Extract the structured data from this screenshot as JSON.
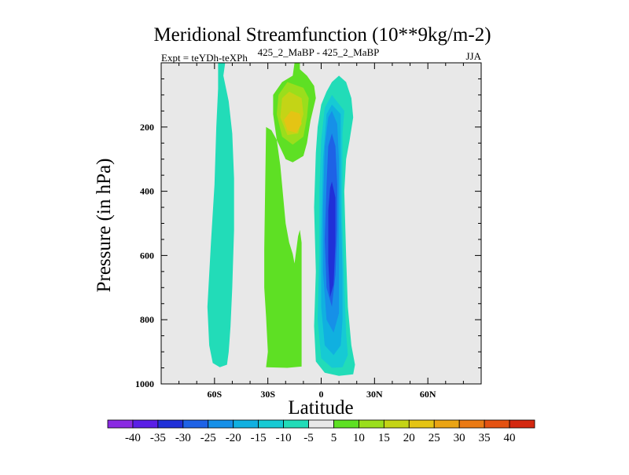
{
  "chart_data": {
    "type": "contour",
    "title": "Meridional Streamfunction (10**9kg/m-2)",
    "subtitle_left": "Expt = teYDh-teXPh",
    "subtitle_center": "425_2_MaBP - 425_2_MaBP",
    "subtitle_right": "JJA",
    "xlabel": "Latitude",
    "ylabel": "Pressure (in hPa)",
    "xlim": [
      -90,
      90
    ],
    "ylim": [
      1000,
      0
    ],
    "y_inverted": true,
    "x_ticks": [
      {
        "value": -60,
        "label": "60S"
      },
      {
        "value": -30,
        "label": "30S"
      },
      {
        "value": 0,
        "label": "0"
      },
      {
        "value": 30,
        "label": "30N"
      },
      {
        "value": 60,
        "label": "60N"
      }
    ],
    "y_ticks": [
      {
        "value": 200,
        "label": "200"
      },
      {
        "value": 400,
        "label": "400"
      },
      {
        "value": 600,
        "label": "600"
      },
      {
        "value": 800,
        "label": "800"
      },
      {
        "value": 1000,
        "label": "1000"
      }
    ],
    "x_minor_step": 10,
    "y_minor_step": 50,
    "background_color": "#e8e8e8",
    "colorbar": {
      "levels": [
        -40,
        -35,
        -30,
        -25,
        -20,
        -15,
        -10,
        -5,
        5,
        10,
        15,
        20,
        25,
        30,
        35,
        40
      ],
      "labels": [
        "-40",
        "-35",
        "-30",
        "-25",
        "-20",
        "-15",
        "-10",
        "-5",
        "5",
        "10",
        "15",
        "20",
        "25",
        "30",
        "35",
        "40"
      ],
      "colors": [
        "#8a2be2",
        "#5a1ee6",
        "#2030d8",
        "#1e62e6",
        "#1690e8",
        "#10b0e0",
        "#16cad4",
        "#22dcb8",
        "#e8e8e8",
        "#5ee024",
        "#9ade1c",
        "#c4d416",
        "#e4c414",
        "#eaa414",
        "#ea7a14",
        "#e45212",
        "#d42810"
      ]
    },
    "regions": [
      {
        "name": "sh-positive-tongue",
        "level": "-10 to -5",
        "color": "#22dcb8",
        "points": [
          [
            -58,
            0
          ],
          [
            -54,
            0
          ],
          [
            -55,
            40
          ],
          [
            -52,
            120
          ],
          [
            -50,
            220
          ],
          [
            -49,
            360
          ],
          [
            -49,
            520
          ],
          [
            -50,
            700
          ],
          [
            -51,
            820
          ],
          [
            -52,
            900
          ],
          [
            -53,
            940
          ],
          [
            -57,
            948
          ],
          [
            -61,
            935
          ],
          [
            -63,
            880
          ],
          [
            -64,
            760
          ],
          [
            -62,
            560
          ],
          [
            -60,
            380
          ],
          [
            -59,
            200
          ],
          [
            -58,
            80
          ]
        ]
      },
      {
        "name": "sh-band-5",
        "level": "5 to 10",
        "color": "#5ee024",
        "points": [
          [
            -31,
            200
          ],
          [
            -32,
            580
          ],
          [
            -32,
            700
          ],
          [
            -31,
            790
          ],
          [
            -30,
            900
          ],
          [
            -31,
            948
          ],
          [
            -19,
            950
          ],
          [
            -11,
            946
          ],
          [
            -11,
            820
          ],
          [
            -11,
            620
          ],
          [
            -11,
            560
          ],
          [
            -12,
            520
          ],
          [
            -13,
            540
          ],
          [
            -15,
            625
          ],
          [
            -16,
            595
          ],
          [
            -18,
            560
          ],
          [
            -20,
            500
          ],
          [
            -23,
            320
          ],
          [
            -25,
            240
          ],
          [
            -28,
            210
          ]
        ]
      },
      {
        "name": "upper-positive-5",
        "level": "5 to 10",
        "color": "#5ee024",
        "points": [
          [
            -15,
            0
          ],
          [
            -12,
            0
          ],
          [
            -12,
            20
          ],
          [
            -8,
            40
          ],
          [
            -4,
            72
          ],
          [
            -3,
            110
          ],
          [
            -6,
            180
          ],
          [
            -8,
            250
          ],
          [
            -10,
            290
          ],
          [
            -16,
            310
          ],
          [
            -20,
            300
          ],
          [
            -25,
            240
          ],
          [
            -27,
            160
          ],
          [
            -27,
            100
          ],
          [
            -22,
            60
          ],
          [
            -16,
            40
          ]
        ]
      },
      {
        "name": "upper-positive-10",
        "level": "10 to 15",
        "color": "#9ade1c",
        "points": [
          [
            -19,
            60
          ],
          [
            -10,
            78
          ],
          [
            -7,
            110
          ],
          [
            -8,
            170
          ],
          [
            -10,
            230
          ],
          [
            -16,
            255
          ],
          [
            -22,
            230
          ],
          [
            -25,
            160
          ],
          [
            -24,
            100
          ]
        ]
      },
      {
        "name": "upper-positive-15",
        "level": "15 to 20",
        "color": "#c4d416",
        "points": [
          [
            -18,
            90
          ],
          [
            -11,
            110
          ],
          [
            -10,
            160
          ],
          [
            -13,
            220
          ],
          [
            -19,
            225
          ],
          [
            -23,
            170
          ],
          [
            -22,
            110
          ]
        ]
      },
      {
        "name": "upper-positive-20",
        "level": "20 to 25",
        "color": "#e4c414",
        "points": [
          [
            -17,
            150
          ],
          [
            -12,
            158
          ],
          [
            -11,
            190
          ],
          [
            -14,
            218
          ],
          [
            -19,
            210
          ],
          [
            -21,
            178
          ]
        ]
      },
      {
        "name": "nh-negative-5",
        "level": "-10 to -5",
        "color": "#22dcb8",
        "points": [
          [
            10,
            40
          ],
          [
            14,
            60
          ],
          [
            17,
            110
          ],
          [
            18,
            170
          ],
          [
            16,
            240
          ],
          [
            14,
            300
          ],
          [
            13,
            400
          ],
          [
            14,
            600
          ],
          [
            15,
            760
          ],
          [
            17,
            880
          ],
          [
            19,
            940
          ],
          [
            18,
            970
          ],
          [
            10,
            975
          ],
          [
            2,
            965
          ],
          [
            -3,
            930
          ],
          [
            -4,
            820
          ],
          [
            -3,
            650
          ],
          [
            -4,
            450
          ],
          [
            -3,
            280
          ],
          [
            -2,
            200
          ],
          [
            0,
            130
          ],
          [
            3,
            90
          ],
          [
            6,
            60
          ]
        ]
      },
      {
        "name": "nh-negative-10",
        "level": "-15 to -10",
        "color": "#16cad4",
        "points": [
          [
            6,
            100
          ],
          [
            13,
            150
          ],
          [
            12,
            220
          ],
          [
            12,
            320
          ],
          [
            12,
            500
          ],
          [
            13,
            700
          ],
          [
            14,
            840
          ],
          [
            15,
            910
          ],
          [
            12,
            948
          ],
          [
            6,
            950
          ],
          [
            0,
            920
          ],
          [
            -2,
            800
          ],
          [
            -1,
            600
          ],
          [
            -1,
            400
          ],
          [
            0,
            240
          ],
          [
            2,
            140
          ]
        ]
      },
      {
        "name": "nh-negative-15",
        "level": "-20 to -15",
        "color": "#10b0e0",
        "points": [
          [
            6,
            130
          ],
          [
            11,
            160
          ],
          [
            11,
            260
          ],
          [
            11,
            440
          ],
          [
            12,
            650
          ],
          [
            12,
            800
          ],
          [
            11,
            880
          ],
          [
            7,
            910
          ],
          [
            2,
            880
          ],
          [
            0,
            760
          ],
          [
            0,
            550
          ],
          [
            1,
            300
          ],
          [
            3,
            160
          ]
        ]
      },
      {
        "name": "nh-negative-20",
        "level": "-25 to -20",
        "color": "#1690e8",
        "points": [
          [
            6,
            150
          ],
          [
            9,
            190
          ],
          [
            10,
            300
          ],
          [
            10,
            480
          ],
          [
            10,
            650
          ],
          [
            10,
            780
          ],
          [
            7,
            840
          ],
          [
            3,
            800
          ],
          [
            1,
            650
          ],
          [
            1,
            450
          ],
          [
            2,
            260
          ],
          [
            4,
            170
          ]
        ]
      },
      {
        "name": "nh-negative-25",
        "level": "-30 to -25",
        "color": "#1e62e6",
        "points": [
          [
            6,
            220
          ],
          [
            8,
            260
          ],
          [
            9,
            380
          ],
          [
            9,
            520
          ],
          [
            8,
            660
          ],
          [
            6,
            760
          ],
          [
            3,
            700
          ],
          [
            2,
            550
          ],
          [
            3,
            380
          ],
          [
            4,
            260
          ]
        ]
      },
      {
        "name": "nh-negative-30",
        "level": "-35 to -30",
        "color": "#2030d8",
        "points": [
          [
            6,
            370
          ],
          [
            8,
            420
          ],
          [
            8,
            560
          ],
          [
            7,
            690
          ],
          [
            5,
            730
          ],
          [
            4,
            620
          ],
          [
            4,
            460
          ],
          [
            5,
            390
          ]
        ]
      }
    ]
  }
}
